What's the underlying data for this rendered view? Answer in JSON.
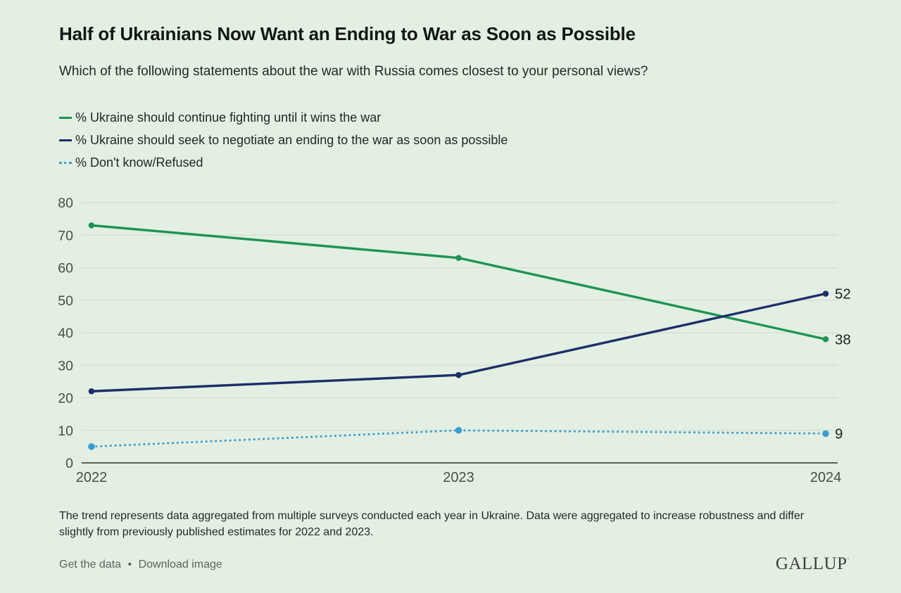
{
  "title": "Half of Ukrainians Now Want an Ending to War as Soon as Possible",
  "subtitle": "Which of the following statements about the war with Russia comes closest to your personal views?",
  "chart_data": {
    "type": "line",
    "categories": [
      "2022",
      "2023",
      "2024"
    ],
    "series": [
      {
        "name": "% Ukraine should continue fighting until it wins the war",
        "values": [
          73,
          63,
          38
        ],
        "color": "#1d9454",
        "style": "solid",
        "end_label": "38"
      },
      {
        "name": "% Ukraine should seek to negotiate an ending to the war as soon as possible",
        "values": [
          22,
          27,
          52
        ],
        "color": "#1c2f6b",
        "style": "solid",
        "end_label": "52"
      },
      {
        "name": "% Don't know/Refused",
        "values": [
          5,
          10,
          9
        ],
        "color": "#3b9dd4",
        "style": "dotted",
        "end_label": "9"
      }
    ],
    "ylim": [
      0,
      80
    ],
    "yticks": [
      0,
      10,
      20,
      30,
      40,
      50,
      60,
      70,
      80
    ],
    "grid": true,
    "legend_position": "top-left",
    "colors": {
      "background": "#e3efe2",
      "gridline": "#d3ded1",
      "axis": "#2c322f",
      "tick_label": "#454f48",
      "value_label": "#1d2422"
    }
  },
  "footnote": "The trend represents data aggregated from multiple surveys conducted each year in Ukraine. Data were aggregated to increase robustness and differ slightly from previously published estimates for 2022 and 2023.",
  "footer": {
    "links": [
      "Get the data",
      "Download image"
    ],
    "separator": "•",
    "logo": "GALLUP",
    "trademark": "’"
  }
}
